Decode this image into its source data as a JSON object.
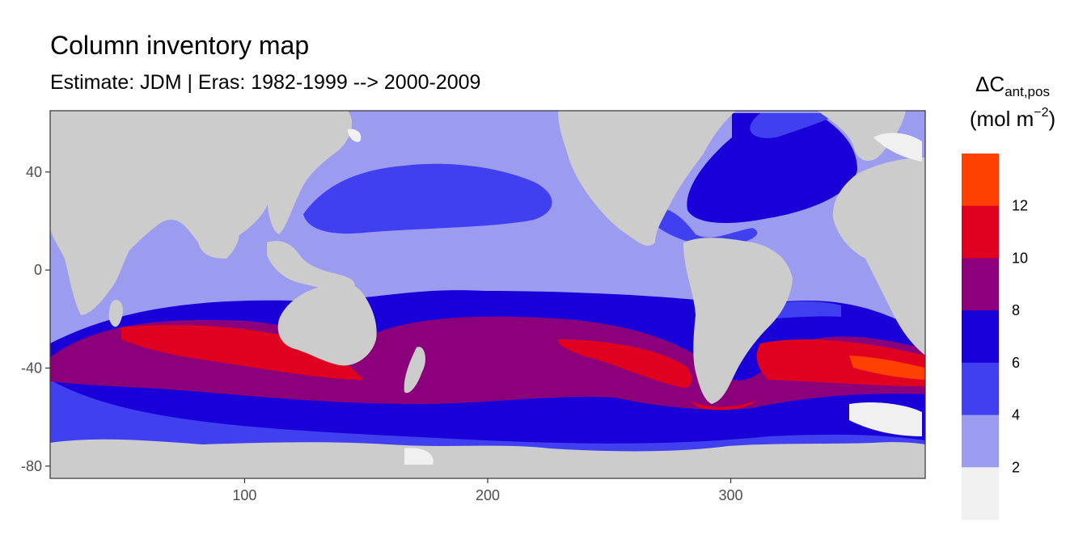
{
  "title": "Column inventory map",
  "subtitle": "Estimate: JDM  | Eras: 1982-1999 --> 2000-2009",
  "legend": {
    "title_main": "ΔC",
    "title_sub": "ant,pos",
    "unit_pre": "(mol m",
    "unit_sup": "−2",
    "unit_post": ")",
    "labels": [
      "12",
      "10",
      "8",
      "6",
      "4",
      "2"
    ],
    "colors": [
      "#ff4000",
      "#e00020",
      "#8b007a",
      "#1a00d8",
      "#4040f0",
      "#9b9cf0",
      "#f0f0f0"
    ]
  },
  "land_color": "#cccccc",
  "chart_data": {
    "type": "heatmap",
    "title": "Column inventory map",
    "subtitle": "Estimate: JDM  | Eras: 1982-1999 --> 2000-2009",
    "xlim": [
      20,
      380
    ],
    "ylim": [
      -85,
      65
    ],
    "x_ticks": [
      "100",
      "200",
      "300"
    ],
    "y_ticks": [
      "40",
      "0",
      "-40",
      "-80"
    ],
    "x_tick_values": [
      100,
      200,
      300
    ],
    "y_tick_values": [
      40,
      0,
      -40,
      -80
    ],
    "color_breaks": [
      2,
      4,
      6,
      8,
      10,
      12
    ],
    "grid": false
  }
}
